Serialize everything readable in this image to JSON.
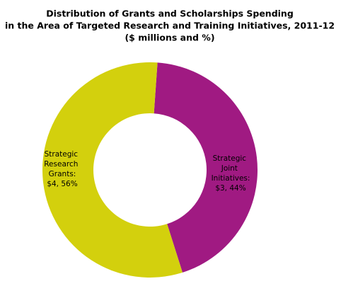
{
  "chart_data": {
    "type": "donut",
    "title": [
      "Distribution of Grants and Scholarships Spending",
      "in the Area of Targeted Research and Training Initiatives, 2011-12",
      "($ millions and %)"
    ],
    "categories": [
      "Strategic Joint Initiatives:",
      "Strategic Research Grants:"
    ],
    "values": [
      44,
      56
    ],
    "value_labels": [
      "$3, 44%",
      "$4, 56%"
    ],
    "colors": [
      "#a01a82",
      "#d3d00d"
    ]
  }
}
